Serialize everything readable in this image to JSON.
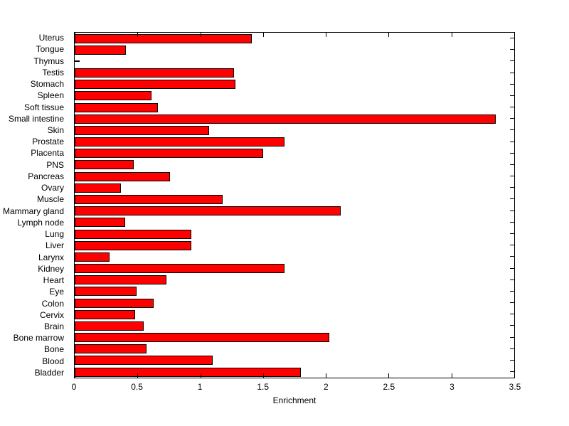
{
  "chart_data": {
    "type": "bar",
    "orientation": "horizontal",
    "xlabel": "Enrichment",
    "xlim": [
      0,
      3.5
    ],
    "xticks": [
      0,
      0.5,
      1,
      1.5,
      2,
      2.5,
      3,
      3.5
    ],
    "xtick_labels": [
      "0",
      "0.5",
      "1",
      "1.5",
      "2",
      "2.5",
      "3",
      "3.5"
    ],
    "grid": false,
    "bar_color": "#ff0000",
    "bar_edge_color": "#000000",
    "background_color": "#ffffff",
    "categories_top_to_bottom": [
      "Uterus",
      "Tongue",
      "Thymus",
      "Testis",
      "Stomach",
      "Spleen",
      "Soft tissue",
      "Small intestine",
      "Skin",
      "Prostate",
      "Placenta",
      "PNS",
      "Pancreas",
      "Ovary",
      "Muscle",
      "Mammary gland",
      "Lymph node",
      "Lung",
      "Liver",
      "Larynx",
      "Kidney",
      "Heart",
      "Eye",
      "Colon",
      "Cervix",
      "Brain",
      "Bone marrow",
      "Bone",
      "Blood",
      "Bladder"
    ],
    "values": [
      1.41,
      0.41,
      0.02,
      1.27,
      1.28,
      0.61,
      0.66,
      3.35,
      1.07,
      1.67,
      1.5,
      0.47,
      0.76,
      0.37,
      1.18,
      2.12,
      0.4,
      0.93,
      0.93,
      0.28,
      1.67,
      0.73,
      0.49,
      0.63,
      0.48,
      0.55,
      2.03,
      0.57,
      1.1,
      1.8
    ]
  }
}
